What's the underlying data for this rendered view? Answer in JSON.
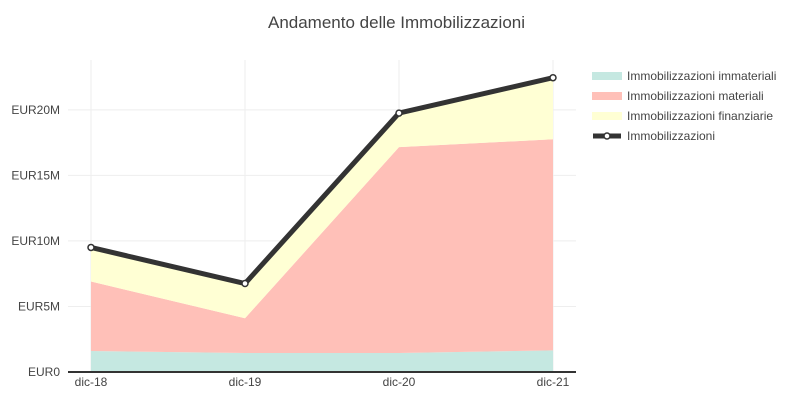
{
  "chart_data": {
    "type": "area",
    "title": "Andamento delle Immobilizzazioni",
    "categories": [
      "dic-18",
      "dic-19",
      "dic-20",
      "dic-21"
    ],
    "y_ticks": [
      0,
      5000000,
      10000000,
      15000000,
      20000000
    ],
    "y_tick_labels": [
      "EUR0",
      "EUR5M",
      "EUR10M",
      "EUR15M",
      "EUR20M"
    ],
    "ylim": [
      0,
      23800000
    ],
    "grid": true,
    "legend_position": "top-right",
    "stacked_series": [
      {
        "name": "Immobilizzazioni immateriali",
        "color": "#c5e8e1",
        "values": [
          1600000,
          1450000,
          1450000,
          1650000
        ]
      },
      {
        "name": "Immobilizzazioni materiali",
        "color": "#ffc0b8",
        "values": [
          5300000,
          2650000,
          15700000,
          16100000
        ]
      },
      {
        "name": "Immobilizzazioni finanziarie",
        "color": "#ffffd4",
        "values": [
          2600000,
          2650000,
          2600000,
          4700000
        ]
      }
    ],
    "line_series": {
      "name": "Immobilizzazioni",
      "color": "#333333",
      "values": [
        9500000,
        6750000,
        19750000,
        22450000
      ]
    }
  }
}
